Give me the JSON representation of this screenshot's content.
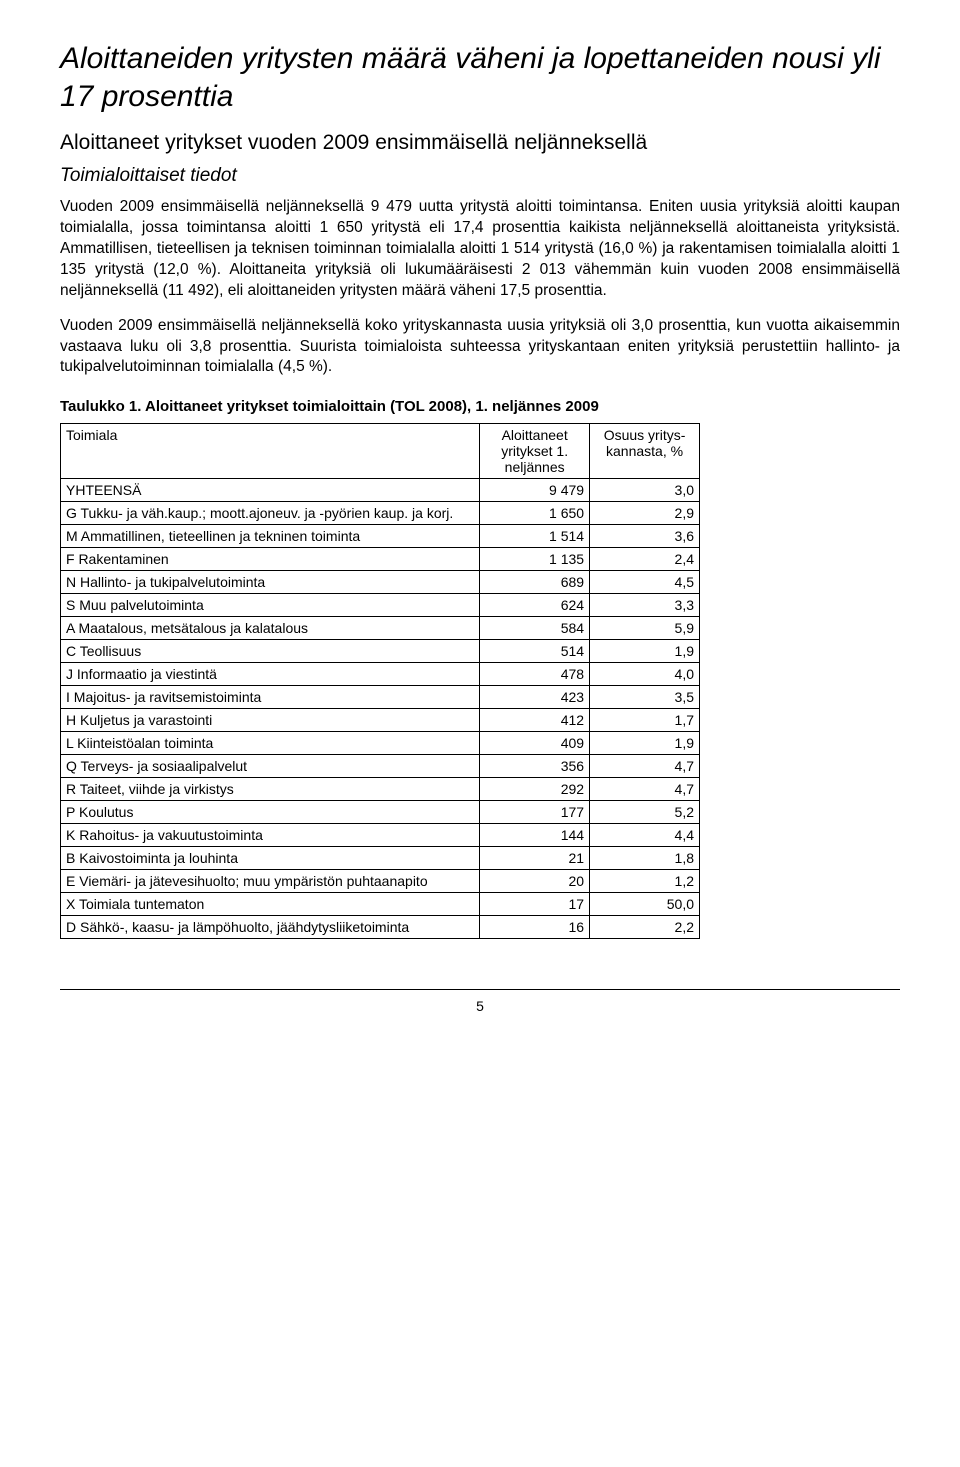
{
  "title": "Aloittaneiden yritysten määrä väheni ja lopettaneiden nousi yli 17 prosenttia",
  "subtitle": "Aloittaneet yritykset vuoden 2009 ensimmäisellä neljänneksellä",
  "section_heading": "Toimialoittaiset tiedot",
  "paragraphs": [
    "Vuoden 2009 ensimmäisellä neljänneksellä 9 479 uutta yritystä aloitti toimintansa. Eniten uusia yrityksiä aloitti kaupan toimialalla, jossa toimintansa aloitti 1 650 yritystä eli 17,4 prosenttia kaikista neljänneksellä aloittaneista yrityksistä. Ammatillisen, tieteellisen ja teknisen toiminnan toimialalla aloitti 1 514 yritystä (16,0 %) ja rakentamisen toimialalla aloitti 1 135 yritystä (12,0 %). Aloittaneita yrityksiä oli lukumääräisesti 2 013 vähemmän kuin vuoden 2008 ensimmäisellä neljänneksellä (11 492), eli aloittaneiden yritysten määrä väheni 17,5 prosenttia.",
    "Vuoden 2009 ensimmäisellä neljänneksellä koko yrityskannasta uusia yrityksiä oli 3,0 prosenttia, kun vuotta aikaisemmin vastaava luku oli 3,8 prosenttia. Suurista toimialoista suhteessa yrityskantaan eniten yrityksiä perustettiin hallinto- ja tukipalvelutoiminnan toimialalla (4,5 %)."
  ],
  "table": {
    "title": "Taulukko 1. Aloittaneet yritykset toimialoittain (TOL 2008), 1. neljännes 2009",
    "columns": [
      "Toimiala",
      "Aloittaneet yritykset 1. neljännes",
      "Osuus yritys-kannasta, %"
    ],
    "rows": [
      [
        "YHTEENSÄ",
        "9 479",
        "3,0"
      ],
      [
        "G Tukku- ja väh.kaup.; moott.ajoneuv. ja -pyörien kaup. ja korj.",
        "1 650",
        "2,9"
      ],
      [
        "M Ammatillinen, tieteellinen ja tekninen toiminta",
        "1 514",
        "3,6"
      ],
      [
        "F Rakentaminen",
        "1 135",
        "2,4"
      ],
      [
        "N Hallinto- ja tukipalvelutoiminta",
        "689",
        "4,5"
      ],
      [
        "S Muu palvelutoiminta",
        "624",
        "3,3"
      ],
      [
        "A Maatalous, metsätalous ja kalatalous",
        "584",
        "5,9"
      ],
      [
        "C Teollisuus",
        "514",
        "1,9"
      ],
      [
        "J Informaatio ja viestintä",
        "478",
        "4,0"
      ],
      [
        "I Majoitus- ja ravitsemistoiminta",
        "423",
        "3,5"
      ],
      [
        "H Kuljetus ja varastointi",
        "412",
        "1,7"
      ],
      [
        "L Kiinteistöalan toiminta",
        "409",
        "1,9"
      ],
      [
        "Q Terveys- ja sosiaalipalvelut",
        "356",
        "4,7"
      ],
      [
        "R Taiteet, viihde ja virkistys",
        "292",
        "4,7"
      ],
      [
        "P Koulutus",
        "177",
        "5,2"
      ],
      [
        "K Rahoitus- ja vakuutustoiminta",
        "144",
        "4,4"
      ],
      [
        "B Kaivostoiminta ja louhinta",
        "21",
        "1,8"
      ],
      [
        "E Viemäri- ja jätevesihuolto; muu ympäristön puhtaanapito",
        "20",
        "1,2"
      ],
      [
        "X Toimiala tuntematon",
        "17",
        "50,0"
      ],
      [
        "D Sähkö-, kaasu- ja lämpöhuolto, jäähdytysliiketoiminta",
        "16",
        "2,2"
      ]
    ],
    "col_widths": [
      "420px",
      "110px",
      "110px"
    ]
  },
  "page_number": "5"
}
